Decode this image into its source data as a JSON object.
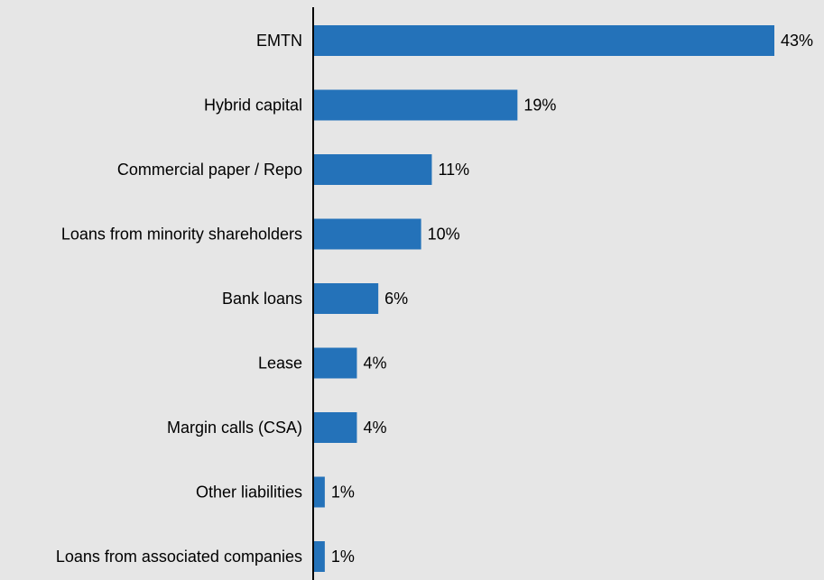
{
  "chart_data": {
    "type": "bar",
    "orientation": "horizontal",
    "title": "",
    "xlabel": "",
    "ylabel": "",
    "grid": false,
    "xlim": [
      0,
      43
    ],
    "categories": [
      "EMTN",
      "Hybrid capital",
      "Commercial paper / Repo",
      "Loans from minority shareholders",
      "Bank loans",
      "Lease",
      "Margin calls (CSA)",
      "Other liabilities",
      "Loans from associated companies"
    ],
    "values": [
      43,
      19,
      11,
      10,
      6,
      4,
      4,
      1,
      1
    ],
    "value_labels": [
      "43%",
      "19%",
      "11%",
      "10%",
      "6%",
      "4%",
      "4%",
      "1%",
      "1%"
    ],
    "colors": {
      "background": "#e6e6e6",
      "bar": "#2472b9",
      "axis": "#000000",
      "text": "#000000"
    }
  }
}
